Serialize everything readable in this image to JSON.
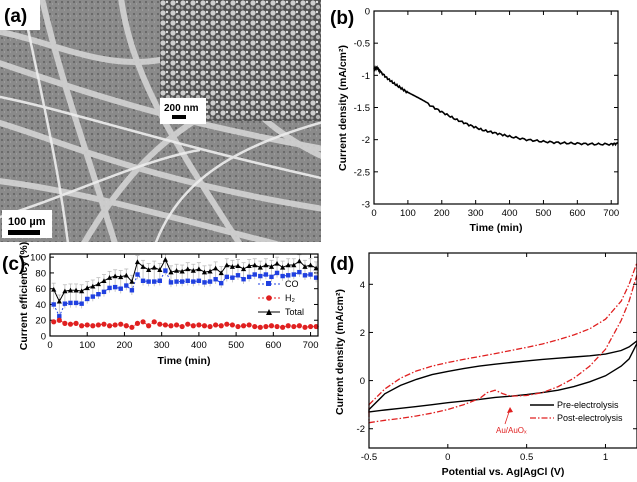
{
  "panels": {
    "a": {
      "letter": "(a)",
      "scale_main": "100 µm",
      "scale_inset": "200 nm"
    },
    "b": {
      "letter": "(b)"
    },
    "c": {
      "letter": "(c)"
    },
    "d": {
      "letter": "(d)"
    }
  },
  "colors": {
    "co": "#2040e0",
    "h2": "#e02020",
    "total": "#000000",
    "post": "#e02020",
    "pre": "#000000",
    "sem_bg": "#7a7a7a"
  },
  "chart_data": [
    {
      "panel": "b",
      "type": "line",
      "title": "",
      "xlabel": "Time (min)",
      "ylabel": "Current density (mA/cm²)",
      "xlim": [
        0,
        720
      ],
      "ylim": [
        -3.0,
        0
      ],
      "xticks": [
        0,
        100,
        200,
        300,
        400,
        500,
        600,
        700
      ],
      "yticks": [
        0,
        -0.5,
        -1,
        -1.5,
        -2,
        -2.5,
        -3
      ],
      "ytick_labels": [
        "0",
        "-0.5",
        "-1",
        "-1.5",
        "-2",
        "-2.5",
        "-3"
      ],
      "series": [
        {
          "name": "current density",
          "x": [
            0,
            10,
            20,
            40,
            60,
            80,
            100,
            130,
            160,
            200,
            240,
            280,
            320,
            360,
            400,
            450,
            500,
            550,
            600,
            650,
            700,
            720
          ],
          "y": [
            -0.9,
            -0.88,
            -0.95,
            -1.05,
            -1.13,
            -1.2,
            -1.27,
            -1.36,
            -1.45,
            -1.57,
            -1.68,
            -1.77,
            -1.85,
            -1.9,
            -1.95,
            -2.0,
            -2.03,
            -2.05,
            -2.06,
            -2.07,
            -2.07,
            -2.06
          ]
        }
      ]
    },
    {
      "panel": "c",
      "type": "line",
      "title": "",
      "xlabel": "Time (min)",
      "ylabel": "Current efficiency (%)",
      "xlim": [
        0,
        720
      ],
      "ylim": [
        0,
        104
      ],
      "xticks": [
        0,
        100,
        200,
        300,
        400,
        500,
        600,
        700
      ],
      "yticks": [
        0,
        20,
        40,
        60,
        80,
        100
      ],
      "legend": [
        "CO",
        "H₂",
        "Total"
      ],
      "series": [
        {
          "name": "CO",
          "x": [
            10,
            25,
            40,
            55,
            70,
            85,
            100,
            115,
            130,
            145,
            160,
            175,
            190,
            205,
            220,
            235,
            250,
            265,
            280,
            295,
            310,
            325,
            340,
            355,
            370,
            385,
            400,
            415,
            430,
            445,
            460,
            475,
            490,
            505,
            520,
            535,
            550,
            565,
            580,
            595,
            610,
            625,
            640,
            655,
            670,
            685,
            700,
            715
          ],
          "values": [
            40,
            25,
            41,
            42,
            42,
            41,
            47,
            50,
            53,
            56,
            61,
            62,
            60,
            64,
            58,
            78,
            70,
            69,
            69,
            70,
            83,
            68,
            69,
            69,
            70,
            69,
            70,
            68,
            69,
            72,
            67,
            75,
            74,
            77,
            72,
            75,
            78,
            76,
            78,
            75,
            80,
            76,
            77,
            78,
            81,
            77,
            78,
            74
          ]
        },
        {
          "name": "H2",
          "x": [
            10,
            25,
            40,
            55,
            70,
            85,
            100,
            115,
            130,
            145,
            160,
            175,
            190,
            205,
            220,
            235,
            250,
            265,
            280,
            295,
            310,
            325,
            340,
            355,
            370,
            385,
            400,
            415,
            430,
            445,
            460,
            475,
            490,
            505,
            520,
            535,
            550,
            565,
            580,
            595,
            610,
            625,
            640,
            655,
            670,
            685,
            700,
            715
          ],
          "values": [
            18,
            20,
            16,
            15,
            16,
            13,
            14,
            13,
            14,
            15,
            13,
            14,
            15,
            13,
            11,
            16,
            18,
            13,
            18,
            15,
            14,
            13,
            14,
            12,
            15,
            13,
            14,
            13,
            12,
            14,
            13,
            15,
            14,
            12,
            13,
            14,
            12,
            11,
            12,
            13,
            12,
            11,
            13,
            12,
            13,
            11,
            12,
            12
          ]
        },
        {
          "name": "Total",
          "x": [
            10,
            25,
            40,
            55,
            70,
            85,
            100,
            115,
            130,
            145,
            160,
            175,
            190,
            205,
            220,
            235,
            250,
            265,
            280,
            295,
            310,
            325,
            340,
            355,
            370,
            385,
            400,
            415,
            430,
            445,
            460,
            475,
            490,
            505,
            520,
            535,
            550,
            565,
            580,
            595,
            610,
            625,
            640,
            655,
            670,
            685,
            700,
            715
          ],
          "values": [
            59,
            44,
            57,
            58,
            58,
            57,
            61,
            63,
            66,
            70,
            74,
            76,
            75,
            77,
            69,
            94,
            88,
            84,
            87,
            84,
            97,
            81,
            83,
            82,
            85,
            83,
            85,
            81,
            82,
            86,
            80,
            90,
            88,
            89,
            85,
            89,
            90,
            87,
            90,
            88,
            92,
            87,
            90,
            90,
            95,
            88,
            90,
            86
          ]
        }
      ]
    },
    {
      "panel": "d",
      "type": "line",
      "title": "",
      "xlabel": "Potential vs. Ag|AgCl (V)",
      "ylabel": "Current density (mA/cm²)",
      "xlim": [
        -0.5,
        1.2
      ],
      "ylim": [
        -2.8,
        5.3
      ],
      "xticks": [
        -0.5,
        0,
        0.5,
        1
      ],
      "yticks": [
        -2,
        0,
        2,
        4
      ],
      "legend": [
        "Pre-electrolysis",
        "Post-electrolysis"
      ],
      "annotation": "Au/AuOₓ",
      "series": [
        {
          "name": "Pre-electrolysis",
          "x": [
            -0.5,
            -0.4,
            -0.3,
            -0.2,
            -0.1,
            0.0,
            0.1,
            0.2,
            0.3,
            0.4,
            0.5,
            0.6,
            0.7,
            0.8,
            0.9,
            1.0,
            1.1,
            1.15,
            1.2,
            1.2,
            1.15,
            1.1,
            1.0,
            0.9,
            0.8,
            0.7,
            0.6,
            0.5,
            0.4,
            0.3,
            0.2,
            0.1,
            0.0,
            -0.1,
            -0.2,
            -0.3,
            -0.4,
            -0.5
          ],
          "values": [
            -1.2,
            -0.55,
            -0.2,
            0.05,
            0.25,
            0.38,
            0.5,
            0.6,
            0.68,
            0.75,
            0.82,
            0.88,
            0.93,
            0.98,
            1.03,
            1.1,
            1.25,
            1.4,
            1.65,
            1.55,
            0.9,
            0.6,
            0.2,
            -0.05,
            -0.25,
            -0.4,
            -0.5,
            -0.58,
            -0.65,
            -0.7,
            -0.78,
            -0.85,
            -0.92,
            -1.0,
            -1.08,
            -1.15,
            -1.22,
            -1.3
          ]
        },
        {
          "name": "Post-electrolysis",
          "x": [
            -0.5,
            -0.4,
            -0.3,
            -0.2,
            -0.1,
            0.0,
            0.1,
            0.2,
            0.3,
            0.4,
            0.5,
            0.6,
            0.7,
            0.8,
            0.9,
            1.0,
            1.1,
            1.15,
            1.2,
            1.2,
            1.15,
            1.1,
            1.0,
            0.9,
            0.8,
            0.7,
            0.6,
            0.5,
            0.4,
            0.35,
            0.3,
            0.25,
            0.2,
            0.1,
            0.0,
            -0.1,
            -0.2,
            -0.3,
            -0.4,
            -0.5
          ],
          "values": [
            -1.0,
            -0.35,
            0.1,
            0.4,
            0.6,
            0.75,
            0.88,
            1.0,
            1.12,
            1.25,
            1.38,
            1.52,
            1.7,
            1.9,
            2.15,
            2.55,
            3.3,
            4.0,
            4.9,
            4.4,
            3.3,
            2.5,
            1.3,
            0.6,
            0.1,
            -0.25,
            -0.5,
            -0.62,
            -0.65,
            -0.55,
            -0.4,
            -0.5,
            -0.75,
            -1.0,
            -1.2,
            -1.35,
            -1.47,
            -1.57,
            -1.65,
            -1.75
          ]
        }
      ]
    }
  ]
}
